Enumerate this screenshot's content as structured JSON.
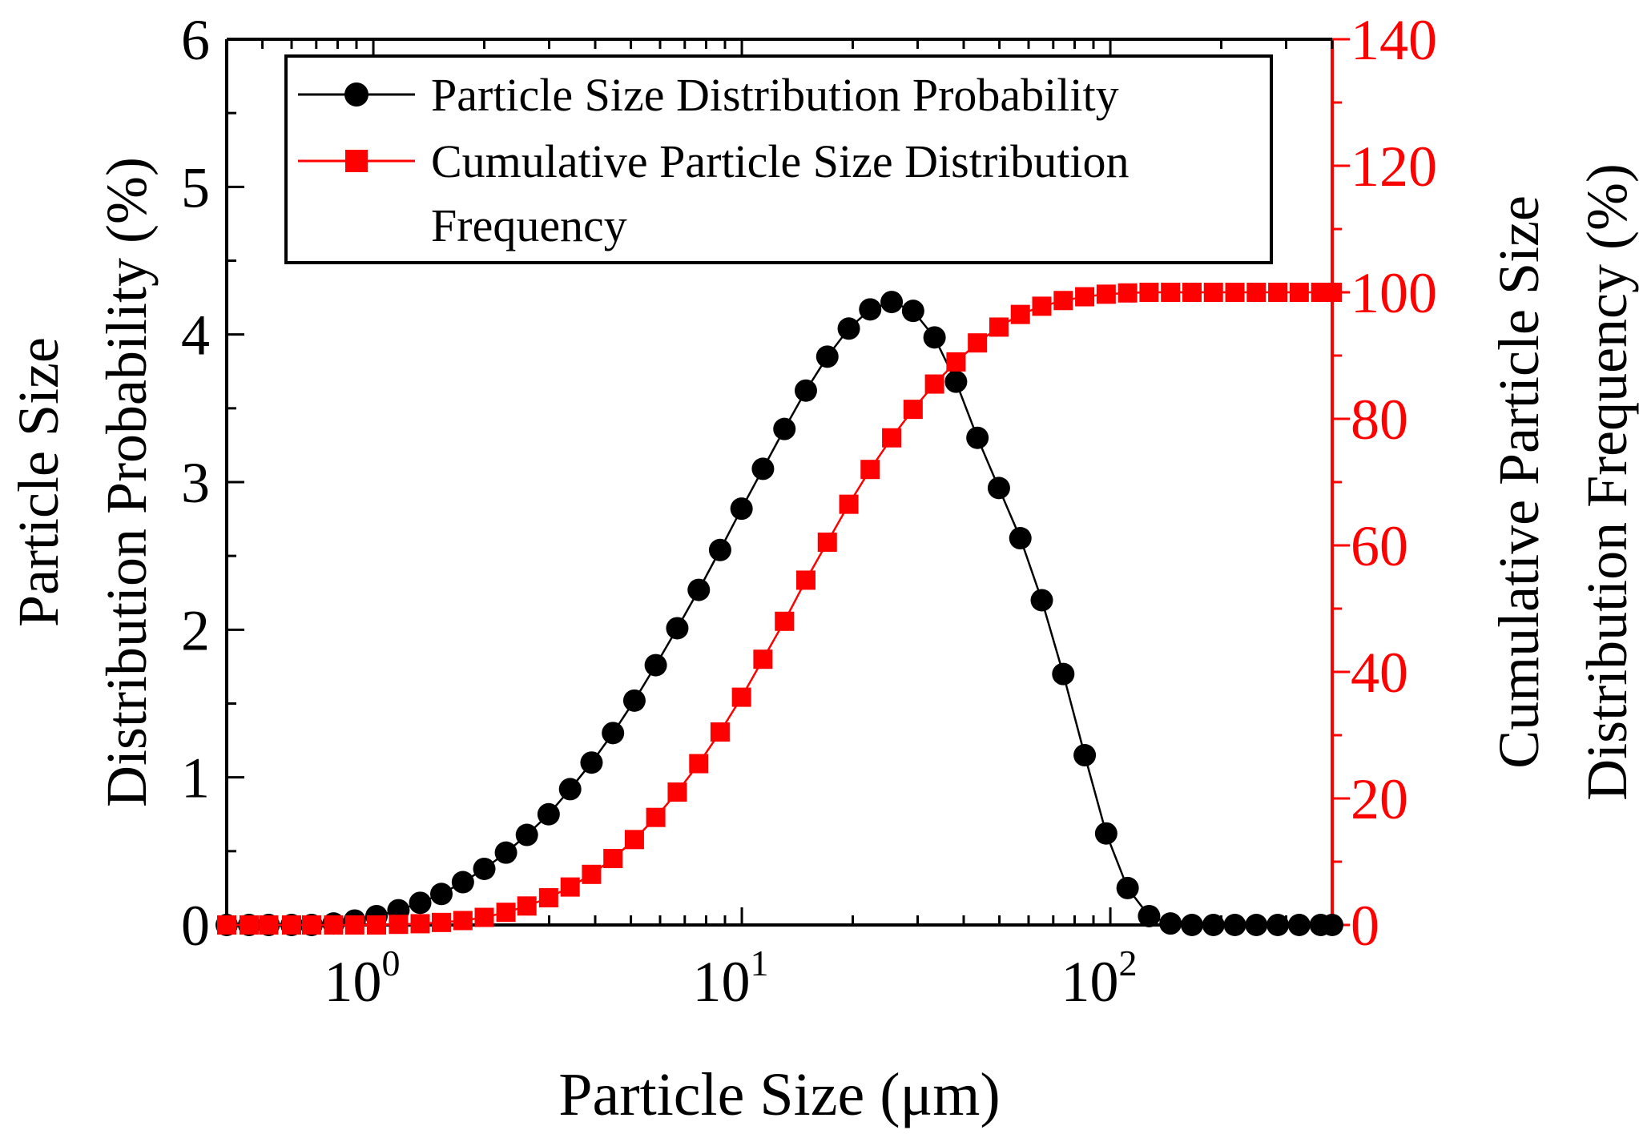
{
  "colors": {
    "left_axis": "#000000",
    "right_axis": "#ff0000",
    "series_probability": "#000000",
    "series_cumulative": "#ff0000"
  },
  "chart_data": {
    "type": "line",
    "x_scale": "log",
    "xlabel": "Particle Size (μm)",
    "xlim": [
      0.4,
      400
    ],
    "x_ticks": [
      {
        "value": 1,
        "base": "10",
        "exp": "0"
      },
      {
        "value": 10,
        "base": "10",
        "exp": "1"
      },
      {
        "value": 100,
        "base": "10",
        "exp": "2"
      }
    ],
    "y_left": {
      "label_lines": [
        "Particle Size",
        "Distribution Probability (%)"
      ],
      "ylim": [
        0,
        6
      ],
      "ticks": [
        "0",
        "1",
        "2",
        "3",
        "4",
        "5",
        "6"
      ]
    },
    "y_right": {
      "label_lines": [
        "Cumulative Particle Size",
        "Distribution Frequency (%)"
      ],
      "ylim": [
        0,
        140
      ],
      "ticks": [
        "0",
        "20",
        "40",
        "60",
        "80",
        "100",
        "120",
        "140"
      ]
    },
    "legend": {
      "position": "top-left",
      "entries": [
        {
          "lines": [
            "Particle Size Distribution Probability"
          ],
          "marker": "circle",
          "series": "probability"
        },
        {
          "lines": [
            "Cumulative Particle Size Distribution",
            "Frequency"
          ],
          "marker": "square",
          "series": "cumulative"
        }
      ]
    },
    "x": [
      0.4,
      0.46,
      0.52,
      0.6,
      0.68,
      0.78,
      0.89,
      1.02,
      1.17,
      1.34,
      1.53,
      1.75,
      2.0,
      2.29,
      2.61,
      2.99,
      3.42,
      3.91,
      4.47,
      5.11,
      5.84,
      6.68,
      7.64,
      8.73,
      9.98,
      11.41,
      13.05,
      14.92,
      17.06,
      19.51,
      22.3,
      25.5,
      29.16,
      33.34,
      38.12,
      43.59,
      49.84,
      56.99,
      65.17,
      74.52,
      85.21,
      97.43,
      111.41,
      127.39,
      145.66,
      166.55,
      190.44,
      217.76,
      249.0,
      284.72,
      325.56,
      372.26,
      400.0
    ],
    "series": [
      {
        "name": "Particle Size Distribution Probability",
        "axis": "left",
        "marker": "circle",
        "values": [
          0,
          0,
          0,
          0,
          0,
          0.01,
          0.03,
          0.06,
          0.1,
          0.15,
          0.21,
          0.29,
          0.38,
          0.49,
          0.61,
          0.75,
          0.92,
          1.1,
          1.3,
          1.52,
          1.76,
          2.01,
          2.27,
          2.54,
          2.82,
          3.09,
          3.36,
          3.62,
          3.85,
          4.04,
          4.17,
          4.22,
          4.16,
          3.98,
          3.68,
          3.3,
          2.96,
          2.62,
          2.2,
          1.7,
          1.15,
          0.62,
          0.25,
          0.06,
          0.01,
          0,
          0,
          0,
          0,
          0,
          0,
          0,
          0
        ]
      },
      {
        "name": "Cumulative Particle Size Distribution Frequency",
        "axis": "right",
        "marker": "square",
        "values": [
          0,
          0,
          0,
          0,
          0,
          0,
          0,
          0,
          0.1,
          0.2,
          0.4,
          0.7,
          1.2,
          2.0,
          3.0,
          4.3,
          6.0,
          8.0,
          10.5,
          13.5,
          17.0,
          21.0,
          25.5,
          30.5,
          36.0,
          42.0,
          48.0,
          54.5,
          60.5,
          66.5,
          72.0,
          77.0,
          81.5,
          85.5,
          89.0,
          92.0,
          94.5,
          96.5,
          97.8,
          98.7,
          99.3,
          99.7,
          99.9,
          100,
          100,
          100,
          100,
          100,
          100,
          100,
          100,
          100,
          100
        ]
      }
    ]
  }
}
